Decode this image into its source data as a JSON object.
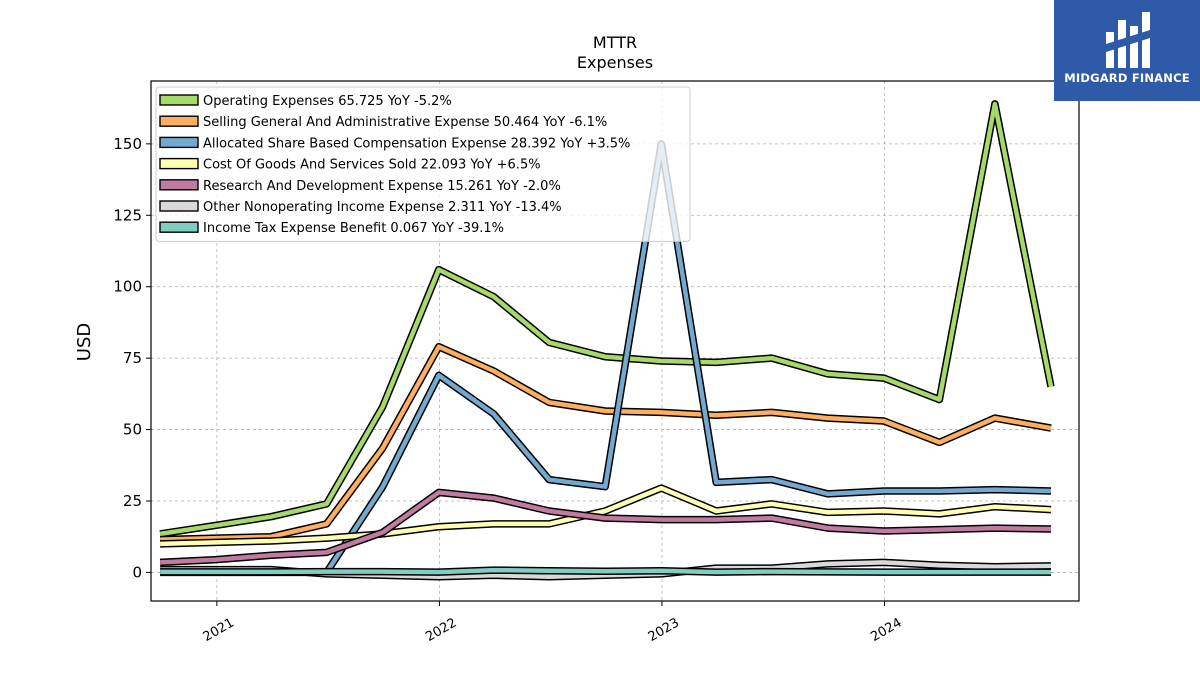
{
  "brand": {
    "name": "MIDGARD FINANCE",
    "bg_color": "#2f5aa8"
  },
  "chart_data": {
    "type": "line",
    "title": "MTTR",
    "subtitle": "Expenses",
    "ylabel": "USD",
    "xlabel": "",
    "ylim": [
      -10,
      172
    ],
    "yticks": [
      0,
      25,
      50,
      75,
      100,
      125,
      150
    ],
    "xticks": [
      "2021",
      "2022",
      "2023",
      "2024"
    ],
    "grid": true,
    "legend_position": "top-left",
    "x": [
      "2020-09-30",
      "2020-12-31",
      "2021-03-31",
      "2021-06-30",
      "2021-09-30",
      "2021-12-31",
      "2022-03-31",
      "2022-06-30",
      "2022-09-30",
      "2022-12-31",
      "2023-03-31",
      "2023-06-30",
      "2023-09-30",
      "2023-12-31",
      "2024-03-31",
      "2024-06-30",
      "2024-09-30"
    ],
    "series": [
      {
        "name": "Operating Expenses",
        "legend": "Operating Expenses  65.725 YoY -5.2%",
        "color": "#a6d96a",
        "values": [
          13.5,
          16.5,
          19.5,
          24,
          58,
          106,
          96.5,
          80.5,
          75.5,
          74,
          73.5,
          75,
          69.5,
          68,
          60.5,
          164,
          65
        ]
      },
      {
        "name": "Selling General And Administrative Expense",
        "legend": "Selling General And Administrative Expense  50.464 YoY -6.1%",
        "color": "#fdae61",
        "values": [
          11.5,
          12,
          12.5,
          17,
          43.5,
          79,
          70.5,
          59.5,
          56.5,
          56,
          55,
          56,
          54,
          53,
          45.5,
          54,
          50.5
        ]
      },
      {
        "name": "Allocated Share Based Compensation Expense",
        "legend": "Allocated Share Based Compensation Expense  28.392 YoY +3.5%",
        "color": "#74a9cf",
        "values": [
          0,
          0,
          0,
          0,
          30,
          69,
          55.5,
          32.5,
          30,
          150,
          31.5,
          32.5,
          27.5,
          28.5,
          28.5,
          29,
          28.5
        ]
      },
      {
        "name": "Cost Of Goods And Services Sold",
        "legend": "Cost Of Goods And Services Sold  22.093 YoY +6.5%",
        "color": "#ffffb2",
        "values": [
          10,
          10.5,
          11,
          12,
          13.5,
          16,
          17,
          17,
          21.5,
          29.5,
          21.5,
          24,
          21,
          21.5,
          20.5,
          23,
          22
        ]
      },
      {
        "name": "Research And Development Expense",
        "legend": "Research And Development Expense  15.261 YoY -2.0%",
        "color": "#c27ba0",
        "values": [
          3.5,
          4.5,
          6,
          7,
          14,
          28,
          26,
          21.5,
          19,
          18.5,
          18.5,
          19,
          15.5,
          14.5,
          15,
          15.5,
          15.2
        ]
      },
      {
        "name": "Other Nonoperating Income Expense",
        "legend": "Other Nonoperating Income Expense  2.311 YoY -13.4%",
        "color": "#d9d9d9",
        "values": [
          1,
          1,
          1,
          -0.5,
          -1,
          -1.5,
          -1,
          -1.5,
          -1,
          -0.5,
          1.5,
          1.5,
          3,
          3.5,
          2.5,
          2,
          2.3
        ]
      },
      {
        "name": "Income Tax Expense Benefit",
        "legend": "Income Tax Expense Benefit  0.067 YoY -39.1%",
        "color": "#80cdc1",
        "values": [
          0.2,
          0.2,
          0.2,
          0.3,
          0.3,
          0.1,
          0.8,
          0.6,
          0.4,
          0.6,
          0.1,
          0.3,
          0.2,
          0.1,
          0.1,
          0.1,
          0.1
        ]
      }
    ]
  }
}
